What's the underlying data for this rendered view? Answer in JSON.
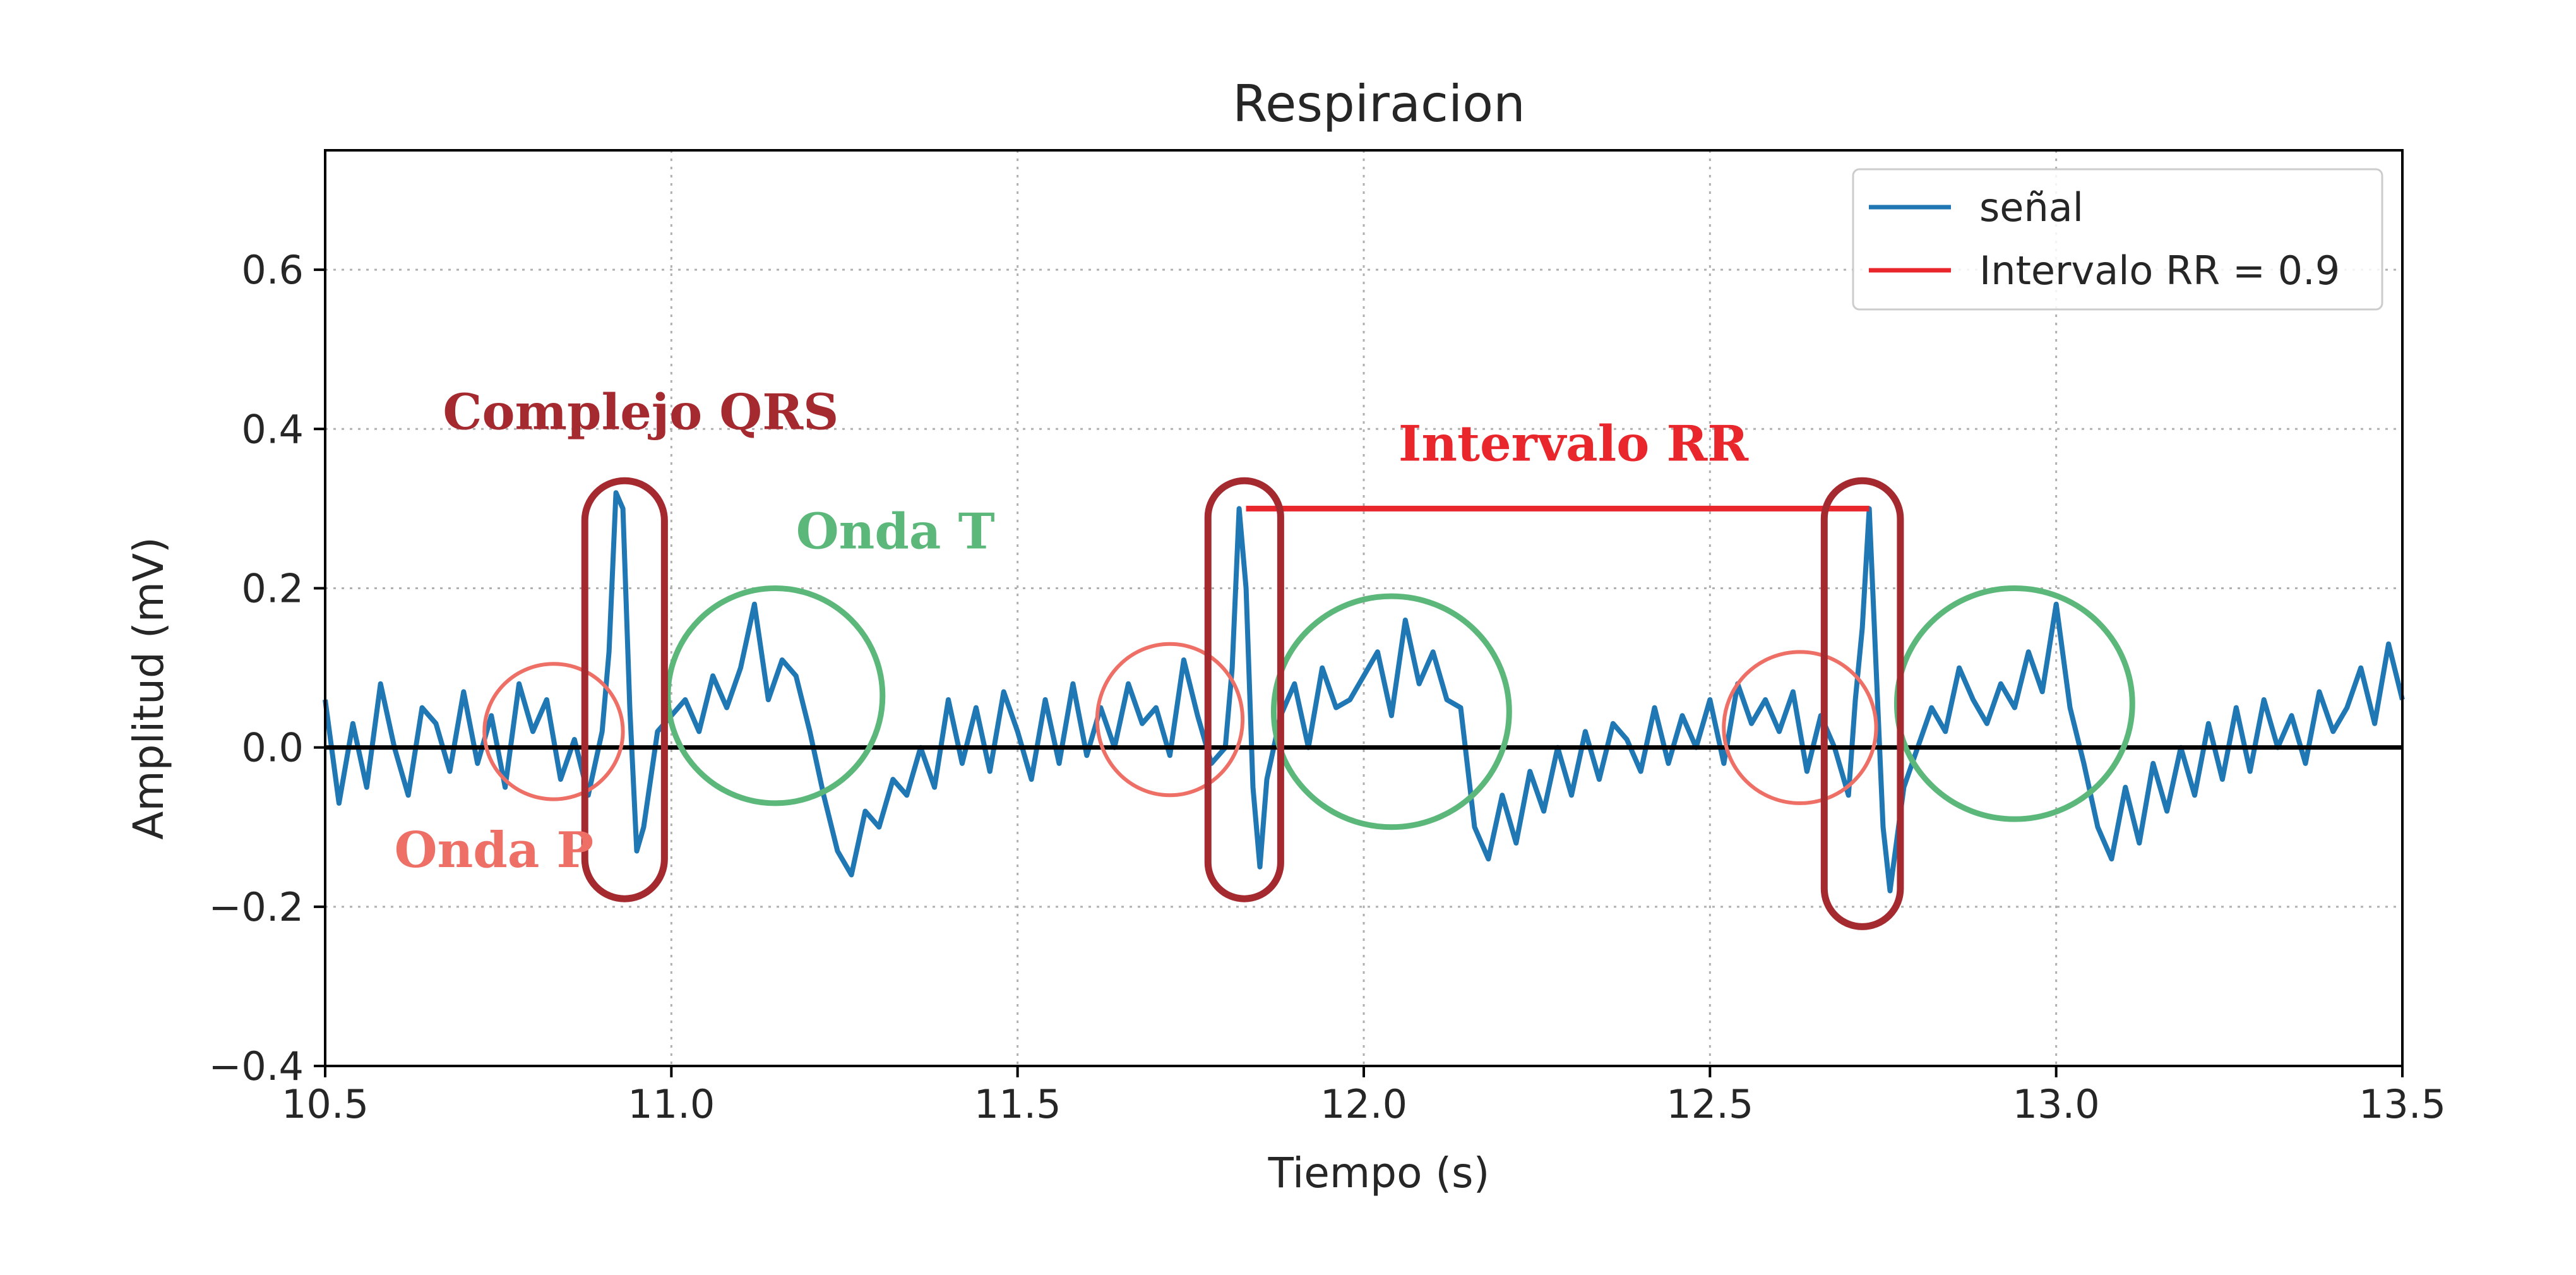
{
  "colors": {
    "signal": "#1f77b4",
    "rr_interval": "#e8262b",
    "baseline": "#000000",
    "grid": "#b0b0b0",
    "qrs_annotation": "#a52a2f",
    "t_wave_annotation": "#5cb87a",
    "p_wave_annotation": "#ee6f66"
  },
  "chart_data": {
    "type": "line",
    "title": "Respiracion",
    "xlabel": "Tiempo (s)",
    "ylabel": "Amplitud (mV)",
    "xlim": [
      10.5,
      13.5
    ],
    "ylim": [
      -0.4,
      0.75
    ],
    "xticks": [
      10.5,
      11.0,
      11.5,
      12.0,
      12.5,
      13.0,
      13.5
    ],
    "xtick_labels": [
      "10.5",
      "11.0",
      "11.5",
      "12.0",
      "12.5",
      "13.0",
      "13.5"
    ],
    "yticks": [
      -0.4,
      -0.2,
      0.0,
      0.2,
      0.4,
      0.6
    ],
    "ytick_labels": [
      "−0.4",
      "−0.2",
      "0.0",
      "0.2",
      "0.4",
      "0.6"
    ],
    "grid": true,
    "legend_position": "top-right",
    "baseline_y": 0.0,
    "series": [
      {
        "name": "señal",
        "color": "#1f77b4",
        "x": [
          10.5,
          10.52,
          10.54,
          10.56,
          10.58,
          10.6,
          10.62,
          10.64,
          10.66,
          10.68,
          10.7,
          10.72,
          10.74,
          10.76,
          10.78,
          10.8,
          10.82,
          10.84,
          10.86,
          10.88,
          10.9,
          10.91,
          10.92,
          10.93,
          10.94,
          10.95,
          10.96,
          10.98,
          11.0,
          11.02,
          11.04,
          11.06,
          11.08,
          11.1,
          11.12,
          11.14,
          11.16,
          11.18,
          11.2,
          11.22,
          11.24,
          11.26,
          11.28,
          11.3,
          11.32,
          11.34,
          11.36,
          11.38,
          11.4,
          11.42,
          11.44,
          11.46,
          11.48,
          11.5,
          11.52,
          11.54,
          11.56,
          11.58,
          11.6,
          11.62,
          11.64,
          11.66,
          11.68,
          11.7,
          11.72,
          11.74,
          11.76,
          11.78,
          11.8,
          11.81,
          11.82,
          11.83,
          11.84,
          11.85,
          11.86,
          11.88,
          11.9,
          11.92,
          11.94,
          11.96,
          11.98,
          12.0,
          12.02,
          12.04,
          12.06,
          12.08,
          12.1,
          12.12,
          12.14,
          12.16,
          12.18,
          12.2,
          12.22,
          12.24,
          12.26,
          12.28,
          12.3,
          12.32,
          12.34,
          12.36,
          12.38,
          12.4,
          12.42,
          12.44,
          12.46,
          12.48,
          12.5,
          12.52,
          12.54,
          12.56,
          12.58,
          12.6,
          12.62,
          12.64,
          12.66,
          12.68,
          12.7,
          12.71,
          12.72,
          12.73,
          12.74,
          12.75,
          12.76,
          12.78,
          12.8,
          12.82,
          12.84,
          12.86,
          12.88,
          12.9,
          12.92,
          12.94,
          12.96,
          12.98,
          13.0,
          13.02,
          13.04,
          13.06,
          13.08,
          13.1,
          13.12,
          13.14,
          13.16,
          13.18,
          13.2,
          13.22,
          13.24,
          13.26,
          13.28,
          13.3,
          13.32,
          13.34,
          13.36,
          13.38,
          13.4,
          13.42,
          13.44,
          13.46,
          13.48,
          13.5
        ],
        "y": [
          0.06,
          -0.07,
          0.03,
          -0.05,
          0.08,
          0.0,
          -0.06,
          0.05,
          0.03,
          -0.03,
          0.07,
          -0.02,
          0.04,
          -0.05,
          0.08,
          0.02,
          0.06,
          -0.04,
          0.01,
          -0.06,
          0.02,
          0.12,
          0.32,
          0.3,
          0.05,
          -0.13,
          -0.1,
          0.02,
          0.04,
          0.06,
          0.02,
          0.09,
          0.05,
          0.1,
          0.18,
          0.06,
          0.11,
          0.09,
          0.02,
          -0.06,
          -0.13,
          -0.16,
          -0.08,
          -0.1,
          -0.04,
          -0.06,
          0.0,
          -0.05,
          0.06,
          -0.02,
          0.05,
          -0.03,
          0.07,
          0.02,
          -0.04,
          0.06,
          -0.02,
          0.08,
          -0.01,
          0.05,
          0.0,
          0.08,
          0.03,
          0.05,
          -0.01,
          0.11,
          0.04,
          -0.02,
          0.0,
          0.1,
          0.3,
          0.2,
          -0.05,
          -0.15,
          -0.04,
          0.04,
          0.08,
          0.0,
          0.1,
          0.05,
          0.06,
          0.09,
          0.12,
          0.04,
          0.16,
          0.08,
          0.12,
          0.06,
          0.05,
          -0.1,
          -0.14,
          -0.06,
          -0.12,
          -0.03,
          -0.08,
          0.0,
          -0.06,
          0.02,
          -0.04,
          0.03,
          0.01,
          -0.03,
          0.05,
          -0.02,
          0.04,
          0.0,
          0.06,
          -0.02,
          0.08,
          0.03,
          0.06,
          0.02,
          0.07,
          -0.03,
          0.04,
          0.0,
          -0.06,
          0.06,
          0.15,
          0.3,
          0.1,
          -0.1,
          -0.18,
          -0.05,
          0.0,
          0.05,
          0.02,
          0.1,
          0.06,
          0.03,
          0.08,
          0.05,
          0.12,
          0.07,
          0.18,
          0.05,
          -0.02,
          -0.1,
          -0.14,
          -0.05,
          -0.12,
          -0.02,
          -0.08,
          0.0,
          -0.06,
          0.03,
          -0.04,
          0.05,
          -0.03,
          0.06,
          0.0,
          0.04,
          -0.02,
          0.07,
          0.02,
          0.05,
          0.1,
          0.03,
          0.13,
          0.06
        ]
      },
      {
        "name": "Intervalo RR = 0.9",
        "color": "#e8262b",
        "x": [
          11.83,
          12.73
        ],
        "y": [
          0.3,
          0.3
        ]
      }
    ],
    "annotations": [
      {
        "text": "Complejo QRS",
        "kind": "qrs",
        "x": 10.67,
        "y": 0.4
      },
      {
        "text": "Onda T",
        "kind": "t",
        "x": 11.18,
        "y": 0.25
      },
      {
        "text": "Intervalo RR",
        "kind": "rr",
        "x": 12.05,
        "y": 0.36
      },
      {
        "text": "Onda P",
        "kind": "p",
        "x": 10.6,
        "y": -0.15
      }
    ],
    "qrs_markers": [
      {
        "x0": 10.875,
        "x1": 10.99,
        "y0": -0.19,
        "y1": 0.335
      },
      {
        "x0": 11.775,
        "x1": 11.88,
        "y0": -0.19,
        "y1": 0.335
      },
      {
        "x0": 12.665,
        "x1": 12.775,
        "y0": -0.225,
        "y1": 0.335
      }
    ],
    "t_wave_markers": [
      {
        "cx": 11.15,
        "cy": 0.065,
        "rx": 0.155,
        "ry": 0.135
      },
      {
        "cx": 12.04,
        "cy": 0.045,
        "rx": 0.17,
        "ry": 0.145
      },
      {
        "cx": 12.94,
        "cy": 0.055,
        "rx": 0.17,
        "ry": 0.145
      }
    ],
    "p_wave_markers": [
      {
        "cx": 10.83,
        "cy": 0.02,
        "rx": 0.1,
        "ry": 0.085
      },
      {
        "cx": 11.72,
        "cy": 0.035,
        "rx": 0.105,
        "ry": 0.095
      },
      {
        "cx": 12.63,
        "cy": 0.025,
        "rx": 0.11,
        "ry": 0.095
      }
    ]
  }
}
